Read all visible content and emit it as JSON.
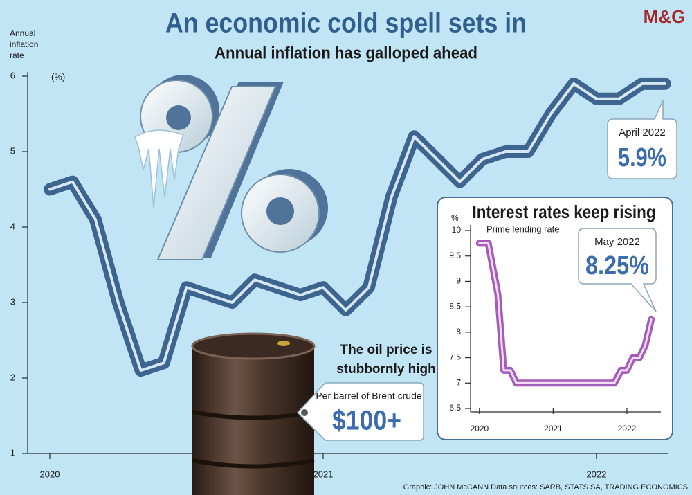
{
  "chart_data": [
    {
      "type": "line",
      "title": "An economic cold spell sets in",
      "subtitle": "Annual inflation has galloped ahead",
      "y_label": "Annual inflation rate",
      "y_unit": "(%)",
      "x": [
        2020,
        2020.083,
        2020.167,
        2020.25,
        2020.333,
        2020.417,
        2020.5,
        2020.583,
        2020.667,
        2020.75,
        2020.833,
        2020.917,
        2021,
        2021.083,
        2021.167,
        2021.25,
        2021.333,
        2021.417,
        2021.5,
        2021.583,
        2021.667,
        2021.75,
        2021.833,
        2021.917,
        2022,
        2022.083,
        2022.167,
        2022.25
      ],
      "values": [
        4.5,
        4.6,
        4.1,
        3.0,
        2.1,
        2.2,
        3.2,
        3.1,
        3.0,
        3.3,
        3.2,
        3.1,
        3.2,
        2.9,
        3.2,
        4.4,
        5.2,
        4.9,
        4.6,
        4.9,
        5.0,
        5.0,
        5.5,
        5.9,
        5.7,
        5.7,
        5.9,
        5.9
      ],
      "value_labels": [
        null,
        null,
        null,
        null,
        null,
        null,
        null,
        null,
        null,
        null,
        null,
        null,
        null,
        null,
        null,
        null,
        null,
        null,
        null,
        null,
        null,
        null,
        null,
        null,
        null,
        null,
        null,
        "5.9%"
      ],
      "annotation": "April 2022",
      "color": "#3d6590",
      "xlim": [
        2019.919,
        2022.261
      ],
      "xticks": [
        2020,
        2021,
        2022
      ],
      "ylim": [
        1,
        6
      ],
      "yticks": [
        1,
        2,
        3,
        4,
        5,
        6
      ]
    },
    {
      "type": "line",
      "title": "Interest rates keep rising",
      "y_unit": "%",
      "x": [
        2020,
        2020.12,
        2020.25,
        2020.33,
        2020.42,
        2020.5,
        2021.83,
        2021.92,
        2022,
        2022.08,
        2022.17,
        2022.25,
        2022.33
      ],
      "series": [
        {
          "name": "Prime lending rate",
          "color": "#a45cb8",
          "values": [
            9.75,
            9.75,
            8.75,
            7.25,
            7.25,
            7.0,
            7.0,
            7.25,
            7.25,
            7.5,
            7.5,
            7.75,
            8.25
          ],
          "value_labels": [
            null,
            null,
            null,
            null,
            null,
            null,
            null,
            null,
            null,
            null,
            null,
            null,
            "8.25%"
          ]
        }
      ],
      "annotation": "May 2022",
      "xlim": [
        2019.88,
        2022.46
      ],
      "xticks": [
        2020,
        2021,
        2022
      ],
      "ylim": [
        6.5,
        10
      ],
      "yticks": [
        6.5,
        7,
        7.5,
        8,
        8.5,
        9,
        9.5,
        10
      ]
    }
  ],
  "oil": {
    "title": "The oil price is stubbornly high",
    "note": "Per barrel of Brent crude",
    "price": "$100+"
  },
  "logo": "M&G",
  "credit": "Graphic: JOHN McCANN  Data sources: SARB, STATS SA, TRADING ECONOMICS"
}
